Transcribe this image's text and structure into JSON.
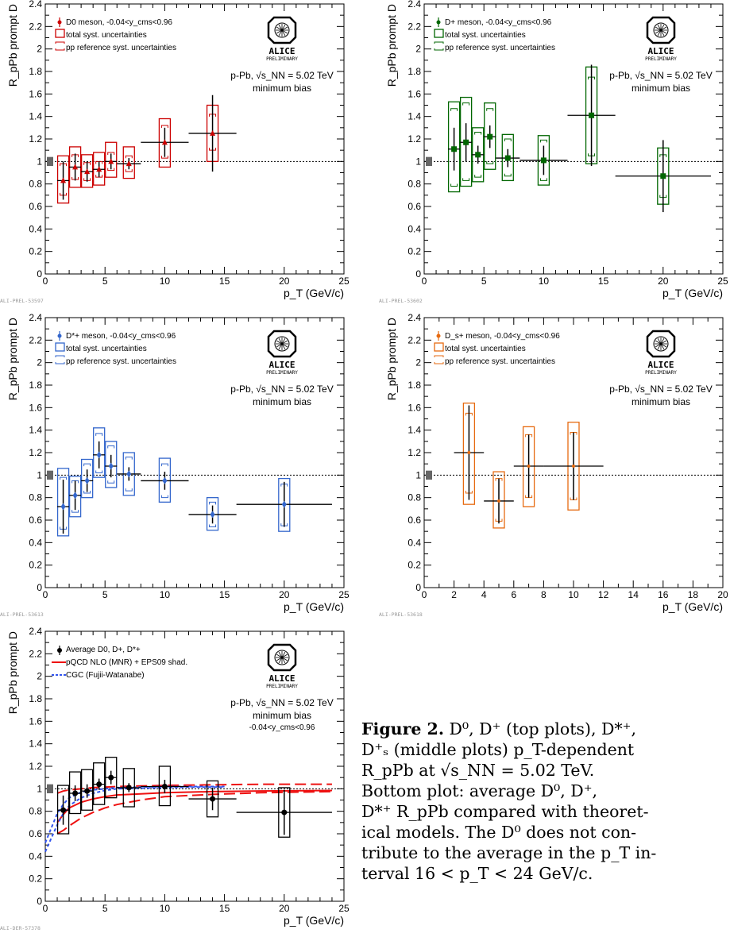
{
  "common": {
    "ylabel": "R_pPb prompt D",
    "xlabel": "p_T (GeV/c)",
    "alice_label": "ALICE",
    "alice_sub": "PRELIMINARY",
    "system": "p-Pb, √s_NN = 5.02 TeV",
    "centrality": "minimum bias",
    "colors": {
      "d0": "#cc0000",
      "dplus": "#006600",
      "dstar": "#3366cc",
      "ds": "#e66a10",
      "avg": "#000000",
      "mnr": "#ee1111",
      "cgc": "#3355ee"
    }
  },
  "chart_data": [
    {
      "type": "scatter",
      "id": "d0",
      "tag": "ALI-PREL-53597",
      "xlim": [
        0,
        25
      ],
      "ylim": [
        0,
        2.4
      ],
      "xticks": [
        0,
        5,
        10,
        15,
        20,
        25
      ],
      "yticks": [
        0,
        0.2,
        0.4,
        0.6,
        0.8,
        1,
        1.2,
        1.4,
        1.6,
        1.8,
        2,
        2.2,
        2.4
      ],
      "legend": [
        "D0 meson, -0.04<y_cms<0.96",
        "total syst. uncertainties",
        "pp reference syst. uncertainties"
      ],
      "marker": "triangle",
      "points": [
        {
          "x": 1.5,
          "xlo": 1,
          "xhi": 2,
          "y": 0.83,
          "stat": 0.17,
          "syst": [
            0.63,
            1.05
          ],
          "pp": [
            0.7,
            0.98
          ]
        },
        {
          "x": 2.5,
          "xlo": 2,
          "xhi": 3,
          "y": 0.95,
          "stat": 0.12,
          "syst": [
            0.77,
            1.13
          ],
          "pp": [
            0.84,
            1.06
          ]
        },
        {
          "x": 3.5,
          "xlo": 3,
          "xhi": 4,
          "y": 0.91,
          "stat": 0.09,
          "syst": [
            0.77,
            1.06
          ],
          "pp": [
            0.83,
            0.99
          ]
        },
        {
          "x": 4.5,
          "xlo": 4,
          "xhi": 5,
          "y": 0.93,
          "stat": 0.07,
          "syst": [
            0.79,
            1.08
          ],
          "pp": [
            0.86,
            1.0
          ]
        },
        {
          "x": 5.5,
          "xlo": 5,
          "xhi": 6,
          "y": 1.0,
          "stat": 0.07,
          "syst": [
            0.86,
            1.17
          ],
          "pp": [
            0.92,
            1.08
          ]
        },
        {
          "x": 7,
          "xlo": 6,
          "xhi": 8,
          "y": 0.98,
          "stat": 0.05,
          "syst": [
            0.85,
            1.13
          ],
          "pp": [
            0.91,
            1.05
          ]
        },
        {
          "x": 10,
          "xlo": 8,
          "xhi": 12,
          "y": 1.17,
          "stat": 0.13,
          "syst": [
            0.95,
            1.38
          ],
          "pp": [
            1.03,
            1.32
          ]
        },
        {
          "x": 14,
          "xlo": 12,
          "xhi": 16,
          "y": 1.25,
          "stat": 0.34,
          "syst": [
            1.0,
            1.5
          ],
          "pp": [
            1.1,
            1.42
          ]
        }
      ]
    },
    {
      "type": "scatter",
      "id": "dplus",
      "tag": "ALI-PREL-53602",
      "xlim": [
        0,
        25
      ],
      "ylim": [
        0,
        2.4
      ],
      "xticks": [
        0,
        5,
        10,
        15,
        20,
        25
      ],
      "yticks": [
        0,
        0.2,
        0.4,
        0.6,
        0.8,
        1,
        1.2,
        1.4,
        1.6,
        1.8,
        2,
        2.2,
        2.4
      ],
      "legend": [
        "D+ meson, -0.04<y_cms<0.96",
        "total syst. uncertainties",
        "pp reference syst. uncertainties"
      ],
      "marker": "square",
      "points": [
        {
          "x": 2.5,
          "xlo": 2,
          "xhi": 3,
          "y": 1.11,
          "stat": 0.19,
          "syst": [
            0.73,
            1.53
          ],
          "pp": [
            0.78,
            1.47
          ]
        },
        {
          "x": 3.5,
          "xlo": 3,
          "xhi": 4,
          "y": 1.17,
          "stat": 0.17,
          "syst": [
            0.78,
            1.57
          ],
          "pp": [
            0.83,
            1.52
          ]
        },
        {
          "x": 4.5,
          "xlo": 4,
          "xhi": 5,
          "y": 1.06,
          "stat": 0.08,
          "syst": [
            0.82,
            1.3
          ],
          "pp": [
            0.86,
            1.26
          ]
        },
        {
          "x": 5.5,
          "xlo": 5,
          "xhi": 6,
          "y": 1.22,
          "stat": 0.1,
          "syst": [
            0.93,
            1.52
          ],
          "pp": [
            0.98,
            1.47
          ]
        },
        {
          "x": 7,
          "xlo": 6,
          "xhi": 8,
          "y": 1.03,
          "stat": 0.08,
          "syst": [
            0.83,
            1.24
          ],
          "pp": [
            0.87,
            1.2
          ]
        },
        {
          "x": 10,
          "xlo": 8,
          "xhi": 12,
          "y": 1.01,
          "stat": 0.13,
          "syst": [
            0.79,
            1.23
          ],
          "pp": [
            0.83,
            1.19
          ]
        },
        {
          "x": 14,
          "xlo": 12,
          "xhi": 16,
          "y": 1.41,
          "stat": 0.45,
          "syst": [
            0.98,
            1.84
          ],
          "pp": [
            1.05,
            1.75
          ]
        },
        {
          "x": 20,
          "xlo": 16,
          "xhi": 24,
          "y": 0.87,
          "stat": 0.32,
          "syst": [
            0.62,
            1.12
          ],
          "pp": [
            0.68,
            1.06
          ]
        }
      ]
    },
    {
      "type": "scatter",
      "id": "dstar",
      "tag": "ALI-PREL-53613",
      "xlim": [
        0,
        25
      ],
      "ylim": [
        0,
        2.4
      ],
      "xticks": [
        0,
        5,
        10,
        15,
        20,
        25
      ],
      "yticks": [
        0,
        0.2,
        0.4,
        0.6,
        0.8,
        1,
        1.2,
        1.4,
        1.6,
        1.8,
        2,
        2.2,
        2.4
      ],
      "legend": [
        "D*+ meson, -0.04<y_cms<0.96",
        "total syst. uncertainties",
        "pp reference syst. uncertainties"
      ],
      "marker": "diamond",
      "points": [
        {
          "x": 1.5,
          "xlo": 1,
          "xhi": 2,
          "y": 0.72,
          "stat": 0.24,
          "syst": [
            0.46,
            1.06
          ],
          "pp": [
            0.52,
            0.98
          ]
        },
        {
          "x": 2.5,
          "xlo": 2,
          "xhi": 3,
          "y": 0.82,
          "stat": 0.13,
          "syst": [
            0.63,
            0.99
          ],
          "pp": [
            0.67,
            0.95
          ]
        },
        {
          "x": 3.5,
          "xlo": 3,
          "xhi": 4,
          "y": 0.95,
          "stat": 0.1,
          "syst": [
            0.8,
            1.14
          ],
          "pp": [
            0.84,
            1.1
          ]
        },
        {
          "x": 4.5,
          "xlo": 4,
          "xhi": 5,
          "y": 1.18,
          "stat": 0.12,
          "syst": [
            0.98,
            1.42
          ],
          "pp": [
            1.02,
            1.37
          ]
        },
        {
          "x": 5.5,
          "xlo": 5,
          "xhi": 6,
          "y": 1.08,
          "stat": 0.1,
          "syst": [
            0.89,
            1.3
          ],
          "pp": [
            0.93,
            1.26
          ]
        },
        {
          "x": 7,
          "xlo": 6,
          "xhi": 8,
          "y": 1.01,
          "stat": 0.06,
          "syst": [
            0.82,
            1.2
          ],
          "pp": [
            0.86,
            1.16
          ]
        },
        {
          "x": 10,
          "xlo": 8,
          "xhi": 12,
          "y": 0.95,
          "stat": 0.08,
          "syst": [
            0.76,
            1.15
          ],
          "pp": [
            0.8,
            1.1
          ]
        },
        {
          "x": 14,
          "xlo": 12,
          "xhi": 16,
          "y": 0.65,
          "stat": 0.08,
          "syst": [
            0.51,
            0.8
          ],
          "pp": [
            0.54,
            0.76
          ]
        },
        {
          "x": 20,
          "xlo": 16,
          "xhi": 24,
          "y": 0.74,
          "stat": 0.2,
          "syst": [
            0.5,
            0.97
          ],
          "pp": [
            0.55,
            0.92
          ]
        }
      ]
    },
    {
      "type": "scatter",
      "id": "ds",
      "tag": "ALI-PREL-53618",
      "xlim": [
        0,
        20
      ],
      "ylim": [
        0,
        2.4
      ],
      "xticks": [
        0,
        2,
        4,
        6,
        8,
        10,
        12,
        14,
        16,
        18,
        20
      ],
      "yticks": [
        0,
        0.2,
        0.4,
        0.6,
        0.8,
        1,
        1.2,
        1.4,
        1.6,
        1.8,
        2,
        2.2,
        2.4
      ],
      "legend": [
        "D_s+ meson, -0.04<y_cms<0.96",
        "total syst. uncertainties",
        "pp reference syst. uncertainties"
      ],
      "marker": "cross",
      "points": [
        {
          "x": 3,
          "xlo": 2,
          "xhi": 4,
          "y": 1.2,
          "stat": 0.42,
          "syst": [
            0.74,
            1.64
          ],
          "pp": [
            0.84,
            1.55
          ]
        },
        {
          "x": 5,
          "xlo": 4,
          "xhi": 6,
          "y": 0.77,
          "stat": 0.2,
          "syst": [
            0.53,
            1.03
          ],
          "pp": [
            0.59,
            0.97
          ]
        },
        {
          "x": 7,
          "xlo": 6,
          "xhi": 8,
          "y": 1.08,
          "stat": 0.28,
          "syst": [
            0.72,
            1.43
          ],
          "pp": [
            0.8,
            1.36
          ]
        },
        {
          "x": 10,
          "xlo": 8,
          "xhi": 12,
          "y": 1.08,
          "stat": 0.3,
          "syst": [
            0.69,
            1.47
          ],
          "pp": [
            0.78,
            1.38
          ]
        }
      ]
    },
    {
      "type": "scatter",
      "id": "avg",
      "tag": "ALI-DER-57378",
      "xlim": [
        0,
        25
      ],
      "ylim": [
        0,
        2.4
      ],
      "xticks": [
        0,
        5,
        10,
        15,
        20,
        25
      ],
      "yticks": [
        0,
        0.2,
        0.4,
        0.6,
        0.8,
        1,
        1.2,
        1.4,
        1.6,
        1.8,
        2,
        2.2,
        2.4
      ],
      "legend": [
        "Average D0, D+, D*+",
        "pQCD NLO (MNR) + EPS09 shad.",
        "CGC (Fujii-Watanabe)"
      ],
      "extra_label": "-0.04<y_cms<0.96",
      "marker": "circle",
      "points": [
        {
          "x": 1.5,
          "xlo": 1,
          "xhi": 2,
          "y": 0.81,
          "stat": 0.13,
          "syst": [
            0.6,
            1.03
          ],
          "pp": null
        },
        {
          "x": 2.5,
          "xlo": 2,
          "xhi": 3,
          "y": 0.96,
          "stat": 0.07,
          "syst": [
            0.78,
            1.15
          ],
          "pp": null
        },
        {
          "x": 3.5,
          "xlo": 3,
          "xhi": 4,
          "y": 0.98,
          "stat": 0.06,
          "syst": [
            0.81,
            1.17
          ],
          "pp": null
        },
        {
          "x": 4.5,
          "xlo": 4,
          "xhi": 5,
          "y": 1.04,
          "stat": 0.05,
          "syst": [
            0.86,
            1.23
          ],
          "pp": null
        },
        {
          "x": 5.5,
          "xlo": 5,
          "xhi": 6,
          "y": 1.1,
          "stat": 0.06,
          "syst": [
            0.92,
            1.28
          ],
          "pp": null
        },
        {
          "x": 7,
          "xlo": 6,
          "xhi": 8,
          "y": 1.01,
          "stat": 0.04,
          "syst": [
            0.84,
            1.18
          ],
          "pp": null
        },
        {
          "x": 10,
          "xlo": 8,
          "xhi": 12,
          "y": 1.02,
          "stat": 0.06,
          "syst": [
            0.85,
            1.2
          ],
          "pp": null
        },
        {
          "x": 14,
          "xlo": 12,
          "xhi": 16,
          "y": 0.91,
          "stat": 0.1,
          "syst": [
            0.75,
            1.07
          ],
          "pp": null
        },
        {
          "x": 20,
          "xlo": 16,
          "xhi": 24,
          "y": 0.79,
          "stat": 0.2,
          "syst": [
            0.57,
            1.01
          ],
          "pp": null
        }
      ],
      "curves": [
        {
          "name": "mnr_central",
          "style": "solid",
          "color": "mnr",
          "x": [
            1,
            1.5,
            2,
            3,
            4,
            5,
            6,
            8,
            10,
            14,
            18,
            24
          ],
          "y": [
            0.7,
            0.77,
            0.83,
            0.88,
            0.91,
            0.93,
            0.945,
            0.955,
            0.965,
            0.975,
            0.98,
            0.985
          ]
        },
        {
          "name": "mnr_upper",
          "style": "dashed",
          "color": "mnr",
          "x": [
            1,
            1.5,
            2,
            3,
            4,
            5,
            6,
            8,
            10,
            14,
            18,
            24
          ],
          "y": [
            0.96,
            0.98,
            0.99,
            1.0,
            1.01,
            1.015,
            1.02,
            1.025,
            1.03,
            1.035,
            1.04,
            1.04
          ]
        },
        {
          "name": "mnr_lower",
          "style": "dashed",
          "color": "mnr",
          "x": [
            1,
            1.5,
            2,
            3,
            4,
            5,
            6,
            8,
            10,
            14,
            18,
            24
          ],
          "y": [
            0.6,
            0.63,
            0.67,
            0.74,
            0.79,
            0.83,
            0.86,
            0.9,
            0.93,
            0.95,
            0.965,
            0.975
          ]
        },
        {
          "name": "cgc_upper",
          "style": "dotted",
          "color": "cgc",
          "x": [
            0,
            0.5,
            1,
            1.5,
            2,
            3,
            4,
            5,
            6,
            8,
            10,
            12,
            15
          ],
          "y": [
            0.52,
            0.65,
            0.78,
            0.86,
            0.92,
            0.97,
            0.99,
            1.0,
            1.01,
            1.015,
            1.02,
            1.02,
            1.02
          ]
        },
        {
          "name": "cgc_lower",
          "style": "dotted",
          "color": "cgc",
          "x": [
            0,
            0.5,
            1,
            1.5,
            2,
            3,
            4,
            5,
            6,
            8,
            10,
            12,
            15
          ],
          "y": [
            0.44,
            0.56,
            0.68,
            0.78,
            0.85,
            0.92,
            0.96,
            0.985,
            1.0,
            1.005,
            1.01,
            1.015,
            1.015
          ]
        }
      ]
    }
  ],
  "caption": {
    "label": "Figure 2.",
    "line1": "D⁰, D⁺ (top plots), D*⁺,",
    "line2": "D⁺ₛ  (middle plots)  p_T-dependent",
    "line3": "R_pPb at √s_NN = 5.02 TeV.",
    "line4": "Bottom plot: average D⁰, D⁺,",
    "line5": "D*⁺ R_pPb compared with theoret-",
    "line6": "ical models. The D⁰ does not con-",
    "line7": "tribute to the average in the p_T in-",
    "line8": "terval 16 < p_T < 24 GeV/c."
  }
}
